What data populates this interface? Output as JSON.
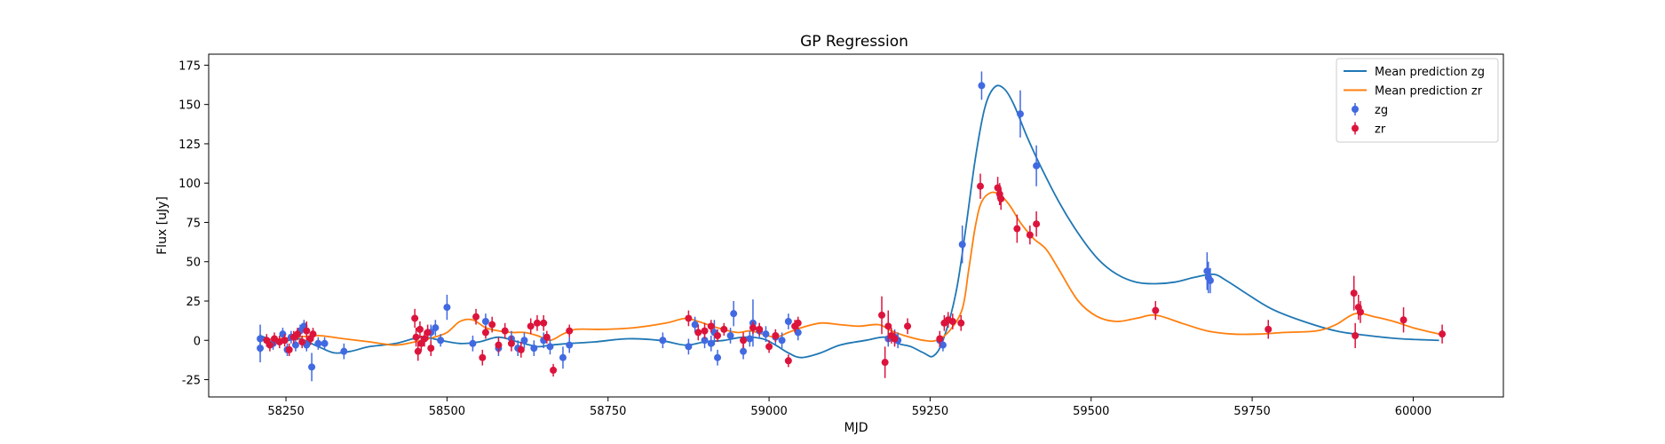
{
  "chart_data": {
    "type": "scatter",
    "title": "GP Regression",
    "xlabel": "MJD",
    "ylabel": "Flux [uJy]",
    "xlim": [
      58130,
      60140
    ],
    "ylim": [
      -36,
      182
    ],
    "xticks": [
      58250,
      58500,
      58750,
      59000,
      59250,
      59500,
      59750,
      60000
    ],
    "yticks": [
      -25,
      0,
      25,
      50,
      75,
      100,
      125,
      150,
      175
    ],
    "grid": false,
    "legend_position": "top-right",
    "colors": {
      "zg_line": "#1f77b4",
      "zr_line": "#ff7f0e",
      "zg_points": "#4169e1",
      "zr_points": "#dc143c"
    },
    "legend": [
      {
        "label": "Mean prediction zg",
        "kind": "line",
        "color": "#1f77b4"
      },
      {
        "label": "Mean prediction zr",
        "kind": "line",
        "color": "#ff7f0e"
      },
      {
        "label": "zg",
        "kind": "errorbar",
        "color": "#4169e1"
      },
      {
        "label": "zr",
        "kind": "errorbar",
        "color": "#dc143c"
      }
    ],
    "series": [
      {
        "name": "Mean prediction zg",
        "kind": "line",
        "color": "#1f77b4",
        "x": [
          58210,
          58240,
          58270,
          58300,
          58325,
          58350,
          58380,
          58420,
          58460,
          58490,
          58520,
          58550,
          58580,
          58610,
          58640,
          58660,
          58690,
          58730,
          58780,
          58830,
          58870,
          58900,
          58930,
          58960,
          58990,
          59010,
          59030,
          59050,
          59080,
          59110,
          59150,
          59180,
          59200,
          59220,
          59240,
          59255,
          59270,
          59290,
          59305,
          59320,
          59335,
          59350,
          59365,
          59380,
          59400,
          59420,
          59450,
          59480,
          59510,
          59540,
          59570,
          59600,
          59630,
          59660,
          59690,
          59710,
          59740,
          59780,
          59830,
          59880,
          59930,
          59980,
          60040
        ],
        "y": [
          3,
          -1,
          1,
          -4,
          -8,
          -7,
          -4,
          -2,
          2,
          0,
          -2,
          -1,
          2,
          -1,
          -4,
          -3,
          -2,
          -1,
          1,
          0,
          -3,
          -1,
          0,
          2,
          1,
          -3,
          -8,
          -11,
          -8,
          -3,
          0,
          2,
          -2,
          -4,
          -8,
          -10,
          0,
          30,
          70,
          115,
          148,
          161,
          160,
          150,
          130,
          112,
          88,
          68,
          52,
          42,
          37,
          36,
          37,
          40,
          42,
          38,
          30,
          20,
          12,
          6,
          3,
          1,
          0
        ]
      },
      {
        "name": "Mean prediction zr",
        "kind": "line",
        "color": "#ff7f0e",
        "x": [
          58210,
          58240,
          58270,
          58300,
          58340,
          58380,
          58420,
          58450,
          58480,
          58500,
          58520,
          58540,
          58560,
          58580,
          58600,
          58620,
          58640,
          58660,
          58680,
          58700,
          58740,
          58790,
          58840,
          58870,
          58890,
          58920,
          58950,
          58970,
          58990,
          59010,
          59030,
          59050,
          59080,
          59110,
          59140,
          59170,
          59190,
          59210,
          59240,
          59260,
          59280,
          59300,
          59310,
          59320,
          59330,
          59345,
          59360,
          59375,
          59390,
          59410,
          59430,
          59450,
          59480,
          59510,
          59540,
          59570,
          59600,
          59640,
          59680,
          59720,
          59760,
          59800,
          59850,
          59880,
          59910,
          59940,
          59970,
          60000,
          60040
        ],
        "y": [
          0,
          1,
          2,
          3,
          1,
          -1,
          -3,
          -1,
          2,
          5,
          12,
          13,
          8,
          6,
          5,
          5,
          3,
          0,
          4,
          7,
          7,
          8,
          11,
          14,
          12,
          8,
          5,
          6,
          4,
          2,
          5,
          8,
          11,
          10,
          9,
          10,
          6,
          3,
          0,
          0,
          6,
          20,
          45,
          72,
          88,
          94,
          92,
          85,
          75,
          65,
          58,
          45,
          25,
          15,
          12,
          14,
          16,
          11,
          6,
          4,
          4,
          5,
          6,
          10,
          17,
          15,
          12,
          8,
          4
        ]
      },
      {
        "name": "zg",
        "kind": "errorbar",
        "color": "#4169e1",
        "x": [
          58210,
          58210,
          58230,
          58245,
          58252,
          58258,
          58265,
          58272,
          58278,
          58282,
          58290,
          58300,
          58310,
          58340,
          58475,
          58482,
          58490,
          58500,
          58540,
          58560,
          58580,
          58600,
          58610,
          58620,
          58635,
          58650,
          58660,
          58680,
          58690,
          58835,
          58875,
          58885,
          58900,
          58910,
          58915,
          58920,
          58940,
          58945,
          58960,
          58970,
          58975,
          58985,
          58995,
          59010,
          59020,
          59030,
          59045,
          59185,
          59195,
          59200,
          59265,
          59270,
          59300,
          59330,
          59390,
          59415,
          59680,
          59682,
          59685
        ],
        "y": [
          1,
          -5,
          -2,
          4,
          -6,
          2,
          -3,
          6,
          9,
          -3,
          -17,
          -2,
          -2,
          -7,
          5,
          8,
          0,
          21,
          -2,
          12,
          -5,
          1,
          -5,
          0,
          -5,
          0,
          -4,
          -11,
          -3,
          0,
          -4,
          10,
          0,
          -2,
          5,
          -11,
          3,
          17,
          -7,
          1,
          11,
          6,
          4,
          2,
          0,
          12,
          5,
          1,
          2,
          0,
          0,
          -3,
          61,
          162,
          144,
          111,
          44,
          40,
          38
        ],
        "yerr": [
          9,
          9,
          4,
          4,
          4,
          4,
          4,
          4,
          4,
          4,
          9,
          4,
          4,
          5,
          5,
          5,
          4,
          8,
          5,
          5,
          5,
          5,
          5,
          5,
          5,
          5,
          5,
          7,
          5,
          5,
          5,
          5,
          5,
          5,
          8,
          5,
          5,
          8,
          5,
          5,
          15,
          5,
          5,
          5,
          5,
          5,
          5,
          5,
          5,
          5,
          5,
          4,
          12,
          9,
          15,
          13,
          12,
          10,
          8
        ]
      },
      {
        "name": "zr",
        "kind": "errorbar",
        "color": "#dc143c",
        "x": [
          58220,
          58225,
          58232,
          58240,
          58248,
          58255,
          58262,
          58268,
          58275,
          58282,
          58288,
          58292,
          58450,
          58452,
          58455,
          58458,
          58460,
          58465,
          58470,
          58475,
          58545,
          58555,
          58560,
          58570,
          58580,
          58590,
          58600,
          58615,
          58630,
          58640,
          58650,
          58655,
          58665,
          58690,
          58875,
          58890,
          58900,
          58910,
          58920,
          58930,
          58960,
          58975,
          58985,
          59000,
          59010,
          59030,
          59040,
          59045,
          59175,
          59180,
          59185,
          59190,
          59195,
          59215,
          59265,
          59272,
          59278,
          59285,
          59298,
          59328,
          59355,
          59358,
          59360,
          59385,
          59405,
          59415,
          59600,
          59775,
          59908,
          59910,
          59915,
          59918,
          59985,
          60045
        ],
        "y": [
          0,
          -3,
          1,
          -1,
          0,
          -6,
          2,
          4,
          -1,
          6,
          1,
          4,
          14,
          2,
          -7,
          7,
          -2,
          1,
          5,
          -5,
          15,
          -11,
          5,
          10,
          -3,
          6,
          -2,
          -6,
          9,
          11,
          11,
          2,
          -19,
          6,
          14,
          5,
          6,
          9,
          3,
          7,
          0,
          8,
          7,
          -4,
          3,
          -13,
          9,
          11,
          16,
          -14,
          9,
          3,
          1,
          9,
          1,
          11,
          13,
          12,
          11,
          98,
          97,
          93,
          90,
          71,
          67,
          74,
          19,
          7,
          30,
          3,
          21,
          18,
          13,
          4
        ],
        "yerr": [
          4,
          4,
          4,
          4,
          4,
          4,
          4,
          4,
          4,
          6,
          4,
          4,
          6,
          6,
          6,
          5,
          5,
          5,
          5,
          5,
          5,
          5,
          4,
          5,
          5,
          5,
          5,
          5,
          5,
          5,
          5,
          4,
          4,
          4,
          5,
          5,
          5,
          4,
          4,
          4,
          5,
          4,
          4,
          4,
          4,
          4,
          4,
          4,
          12,
          10,
          10,
          5,
          5,
          5,
          5,
          5,
          5,
          5,
          5,
          8,
          7,
          7,
          7,
          9,
          6,
          8,
          6,
          6,
          11,
          8,
          8,
          7,
          8,
          6
        ]
      }
    ]
  }
}
